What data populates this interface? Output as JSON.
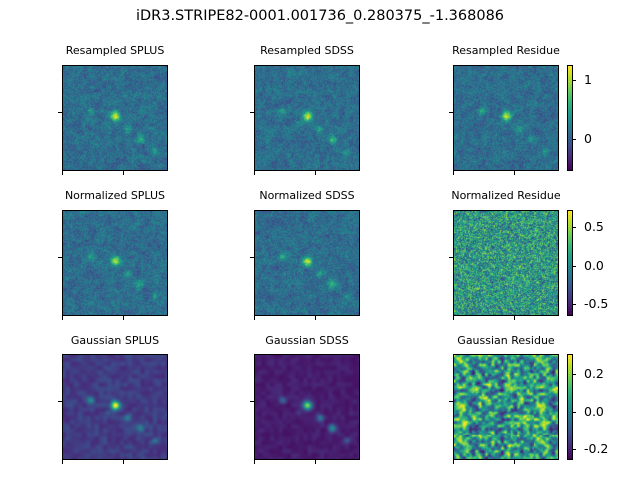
{
  "figure": {
    "title": "iDR3.STRIPE82-0001.001736_0.280375_-1.368086"
  },
  "panels": [
    {
      "title": "Resampled SPLUS",
      "style": "noisy"
    },
    {
      "title": "Resampled SDSS",
      "style": "noisy"
    },
    {
      "title": "Resampled Residue",
      "style": "noisy"
    },
    {
      "title": "Normalized SPLUS",
      "style": "noisy"
    },
    {
      "title": "Normalized SDSS",
      "style": "noisy"
    },
    {
      "title": "Normalized Residue",
      "style": "residual"
    },
    {
      "title": "Gaussian SPLUS",
      "style": "smooth"
    },
    {
      "title": "Gaussian SDSS",
      "style": "smooth-dark"
    },
    {
      "title": "Gaussian Residue",
      "style": "residual-smooth"
    }
  ],
  "colorbars": [
    {
      "ticks": [
        "1",
        "0"
      ],
      "tick_values": [
        1,
        0
      ],
      "range": [
        -0.55,
        1.25
      ]
    },
    {
      "ticks": [
        "0.5",
        "0.0",
        "-0.5"
      ],
      "tick_values": [
        0.5,
        0.0,
        -0.5
      ],
      "range": [
        -0.65,
        0.72
      ]
    },
    {
      "ticks": [
        "0.2",
        "0.0",
        "-0.2"
      ],
      "tick_values": [
        0.2,
        0.0,
        -0.2
      ],
      "range": [
        -0.26,
        0.31
      ]
    }
  ],
  "colormap": "viridis"
}
